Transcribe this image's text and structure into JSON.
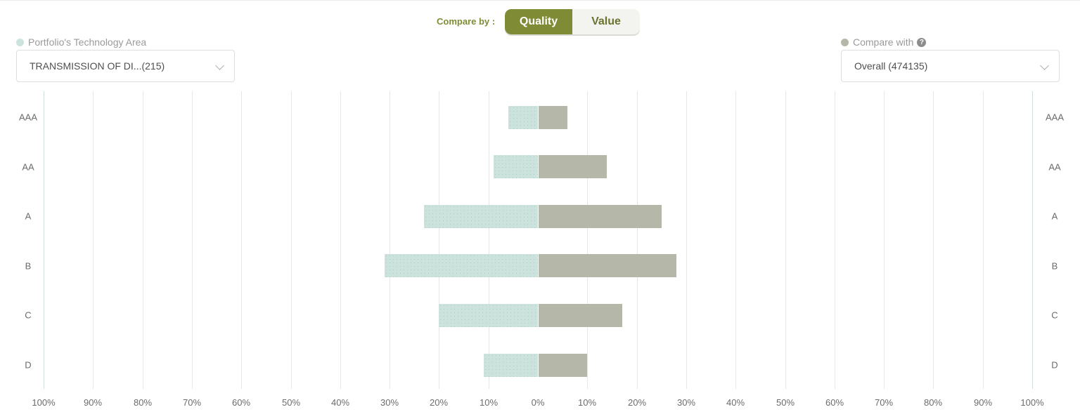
{
  "header": {
    "compare_by_label": "Compare by :",
    "toggle": [
      {
        "label": "Quality",
        "active": true
      },
      {
        "label": "Value",
        "active": false
      }
    ]
  },
  "left_panel": {
    "legend_label": "Portfolio's Technology Area",
    "legend_color": "#cce3dd",
    "select_value": "TRANSMISSION OF DI...(215)"
  },
  "right_panel": {
    "legend_label": "Compare with",
    "legend_color": "#b5b8a9",
    "help_icon": "question-circle-icon",
    "help_glyph": "?",
    "select_value": "Overall (474135)"
  },
  "colors": {
    "accent": "#7f8b35",
    "portfolio_bar": "#cce3dd",
    "compare_bar": "#b5b8a9"
  },
  "chart_data": {
    "type": "bar",
    "orientation": "horizontal-diverging",
    "categories": [
      "AAA",
      "AA",
      "A",
      "B",
      "C",
      "D"
    ],
    "series": [
      {
        "name": "Portfolio's Technology Area",
        "side": "left",
        "values": [
          6,
          9,
          23,
          31,
          20,
          11
        ]
      },
      {
        "name": "Compare with",
        "side": "right",
        "values": [
          6,
          14,
          25,
          28,
          17,
          10
        ]
      }
    ],
    "x_ticks": [
      "100%",
      "90%",
      "80%",
      "70%",
      "60%",
      "50%",
      "40%",
      "30%",
      "20%",
      "10%",
      "0%",
      "10%",
      "20%",
      "30%",
      "40%",
      "50%",
      "60%",
      "70%",
      "80%",
      "90%",
      "100%"
    ],
    "xlim": [
      -100,
      100
    ],
    "grid": true
  }
}
